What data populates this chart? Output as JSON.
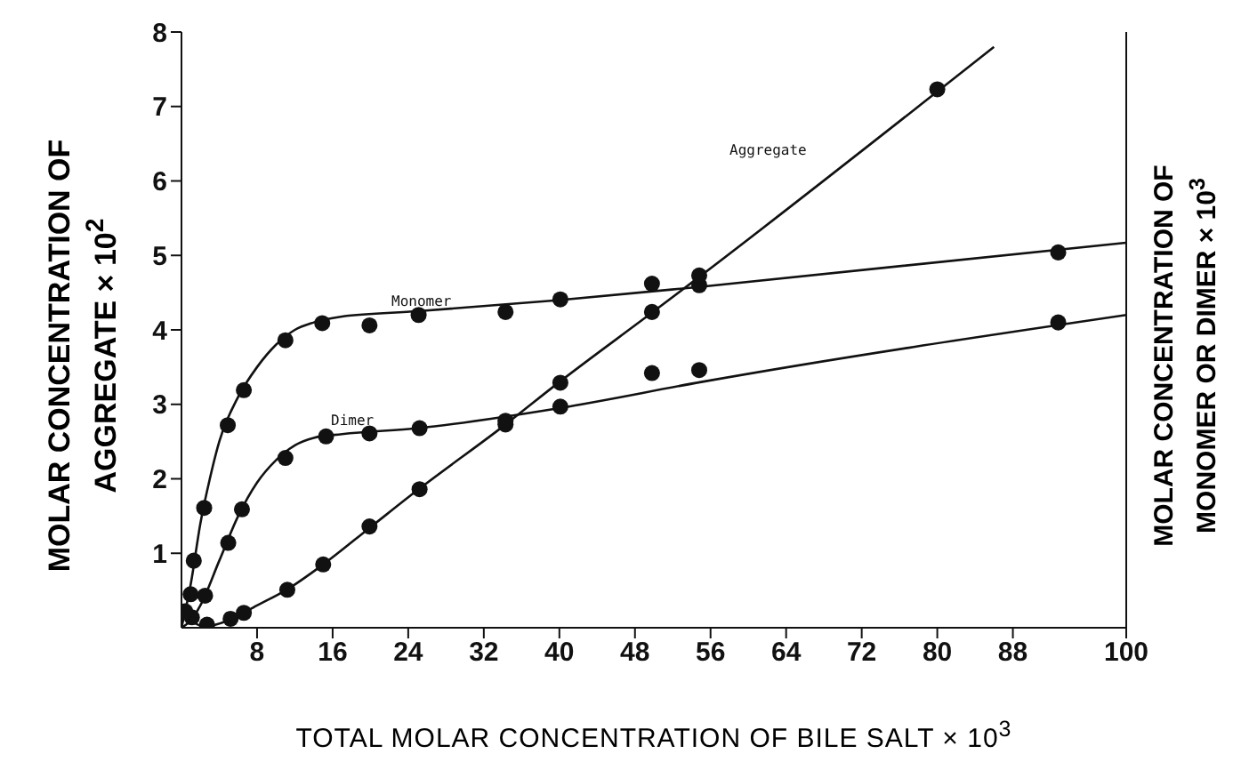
{
  "chart_data": {
    "type": "scatter",
    "xlabel": "TOTAL MOLAR CONCENTRATION OF BILE SALT × 10$^{3}$",
    "ylabel": "MOLAR CONCENTRATION OF\nAGGREGATE × 10$^{2}$",
    "y2label": "MOLAR CONCENTRATION OF\nMONOMER OR DIMER × 10$^{3}$",
    "xlim": [
      0,
      100
    ],
    "xticks": [
      8,
      16,
      24,
      32,
      40,
      48,
      56,
      64,
      72,
      80,
      88,
      100
    ],
    "ylim": [
      0,
      8
    ],
    "yticks": [
      1,
      2,
      3,
      4,
      5,
      6,
      7,
      8
    ],
    "grid": false,
    "marker": "circle",
    "annotations": [
      "Monomer",
      "Dimer",
      "Aggregate"
    ],
    "series": [
      {
        "color": "#111111",
        "x": [
          0.97,
          1.3,
          2.4,
          4.9,
          6.6,
          11.0,
          14.9,
          19.9,
          25.1,
          34.3,
          40.1,
          49.8,
          54.8,
          92.8
        ],
        "values": [
          0.45,
          0.9,
          1.61,
          2.72,
          3.19,
          3.86,
          4.09,
          4.06,
          4.2,
          4.24,
          4.41,
          4.62,
          4.6,
          5.04
        ]
      },
      {
        "type": "line",
        "color": "#111111",
        "marker": "none",
        "x": [
          0,
          1,
          2,
          3,
          4,
          6,
          8,
          10,
          12,
          14,
          17,
          25,
          40,
          55,
          100
        ],
        "values": [
          0,
          0.6,
          1.4,
          2.0,
          2.5,
          3.1,
          3.5,
          3.8,
          4.0,
          4.1,
          4.18,
          4.25,
          4.4,
          4.58,
          5.17
        ]
      },
      {
        "color": "#111111",
        "x": [
          1.1,
          2.5,
          4.95,
          6.4,
          11.0,
          15.3,
          19.9,
          25.2,
          34.3,
          40.1,
          49.8,
          54.8,
          92.8
        ],
        "values": [
          0.14,
          0.43,
          1.14,
          1.59,
          2.28,
          2.57,
          2.61,
          2.68,
          2.78,
          2.97,
          3.42,
          3.46,
          4.1
        ]
      },
      {
        "type": "line",
        "color": "#111111",
        "marker": "none",
        "x": [
          0,
          1,
          2,
          4,
          6,
          8,
          10,
          12,
          14,
          17,
          25,
          40,
          55,
          100
        ],
        "values": [
          0,
          0.1,
          0.3,
          0.9,
          1.5,
          1.95,
          2.25,
          2.45,
          2.55,
          2.6,
          2.68,
          2.95,
          3.3,
          4.2
        ]
      },
      {
        "color": "#111111",
        "x": [
          0.4,
          2.7,
          5.2,
          6.6,
          11.2,
          15.0,
          19.9,
          25.2,
          34.3,
          40.1,
          49.8,
          54.8,
          80.0
        ],
        "values": [
          0.22,
          0.04,
          0.12,
          0.2,
          0.51,
          0.85,
          1.36,
          1.86,
          2.73,
          3.29,
          4.24,
          4.73,
          7.23
        ]
      },
      {
        "type": "line",
        "color": "#111111",
        "marker": "none",
        "x": [
          0,
          1,
          2.5,
          5,
          8,
          11,
          15,
          20,
          25,
          34,
          40,
          50,
          55,
          80,
          86
        ],
        "values": [
          0.3,
          0.1,
          0.02,
          0.1,
          0.3,
          0.5,
          0.85,
          1.35,
          1.85,
          2.7,
          3.3,
          4.25,
          4.73,
          7.2,
          7.8
        ]
      }
    ]
  }
}
